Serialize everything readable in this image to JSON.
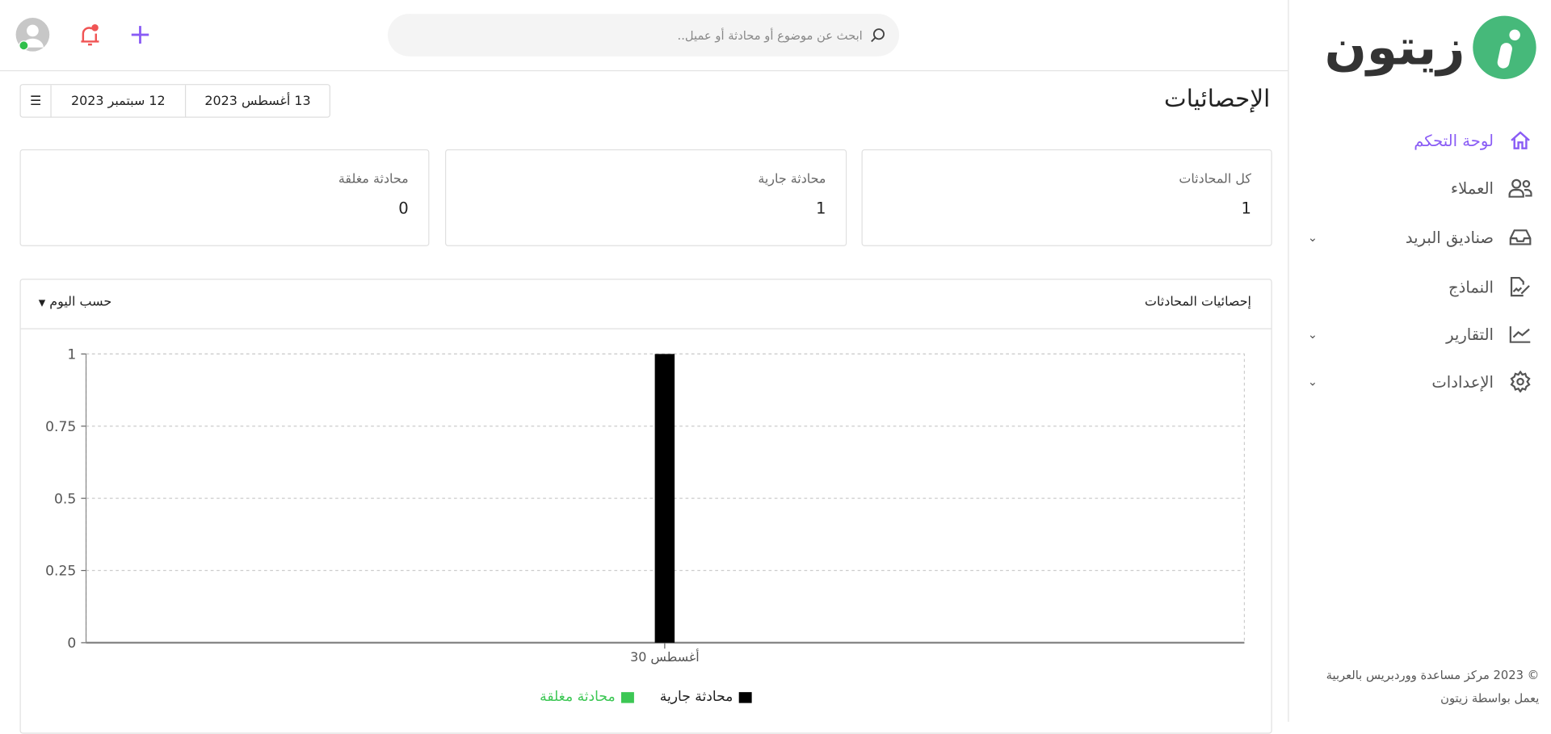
{
  "brand": {
    "name": "زيتون",
    "accent": "#8a5cf5",
    "logo_color": "#46b97a"
  },
  "sidebar": {
    "items": [
      {
        "label": "لوحة التحكم",
        "icon": "home-icon",
        "active": true,
        "expandable": false
      },
      {
        "label": "العملاء",
        "icon": "users-icon",
        "active": false,
        "expandable": false
      },
      {
        "label": "صناديق البريد",
        "icon": "inbox-icon",
        "active": false,
        "expandable": true
      },
      {
        "label": "النماذج",
        "icon": "document-edit-icon",
        "active": false,
        "expandable": false
      },
      {
        "label": "التقارير",
        "icon": "chart-line-icon",
        "active": false,
        "expandable": true
      },
      {
        "label": "الإعدادات",
        "icon": "gear-icon",
        "active": false,
        "expandable": true
      }
    ],
    "footer": {
      "line1": "© 2023 مركز مساعدة ووردبريس بالعربية",
      "line2": "يعمل بواسطة زيتون"
    }
  },
  "topbar": {
    "search_placeholder": "ابحث عن موضوع أو محادثة أو عميل.."
  },
  "main": {
    "title": "الإحصائيات",
    "date_range": {
      "start": "13 أغسطس 2023",
      "end": "12 سبتمبر 2023"
    },
    "cards": [
      {
        "label": "كل المحادثات",
        "value": "1"
      },
      {
        "label": "محادثة جارية",
        "value": "1"
      },
      {
        "label": "محادثة مغلقة",
        "value": "0"
      }
    ],
    "panel": {
      "title": "إحصائيات المحادثات",
      "period": "حسب اليوم"
    }
  },
  "chart_data": {
    "type": "bar",
    "categories": [
      "30 أغسطس"
    ],
    "series": [
      {
        "name": "محادثة جارية",
        "values": [
          1
        ],
        "color": "#000000"
      },
      {
        "name": "محادثة مغلقة",
        "values": [
          0
        ],
        "color": "#3cc754"
      }
    ],
    "ylim": [
      0,
      1
    ],
    "yticks": [
      "0",
      "0.25",
      "0.5",
      "0.75",
      "1"
    ],
    "grid": true,
    "legend": "bottom"
  }
}
